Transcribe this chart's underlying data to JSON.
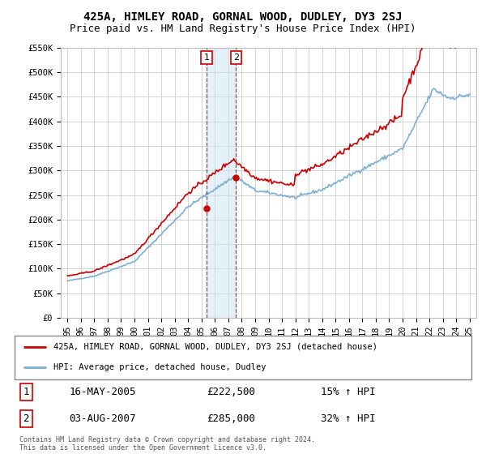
{
  "title": "425A, HIMLEY ROAD, GORNAL WOOD, DUDLEY, DY3 2SJ",
  "subtitle": "Price paid vs. HM Land Registry's House Price Index (HPI)",
  "ylim": [
    0,
    550000
  ],
  "yticks": [
    0,
    50000,
    100000,
    150000,
    200000,
    250000,
    300000,
    350000,
    400000,
    450000,
    500000,
    550000
  ],
  "ytick_labels": [
    "£0",
    "£50K",
    "£100K",
    "£150K",
    "£200K",
    "£250K",
    "£300K",
    "£350K",
    "£400K",
    "£450K",
    "£500K",
    "£550K"
  ],
  "hpi_color": "#7bafd4",
  "price_color": "#cc0000",
  "marker1_date": 2005.37,
  "marker1_price": 222500,
  "marker2_date": 2007.58,
  "marker2_price": 285000,
  "legend_house_label": "425A, HIMLEY ROAD, GORNAL WOOD, DUDLEY, DY3 2SJ (detached house)",
  "legend_hpi_label": "HPI: Average price, detached house, Dudley",
  "table_row1": [
    "1",
    "16-MAY-2005",
    "£222,500",
    "15% ↑ HPI"
  ],
  "table_row2": [
    "2",
    "03-AUG-2007",
    "£285,000",
    "32% ↑ HPI"
  ],
  "footnote": "Contains HM Land Registry data © Crown copyright and database right 2024.\nThis data is licensed under the Open Government Licence v3.0.",
  "grid_color": "#cccccc",
  "title_fontsize": 10,
  "subtitle_fontsize": 9
}
